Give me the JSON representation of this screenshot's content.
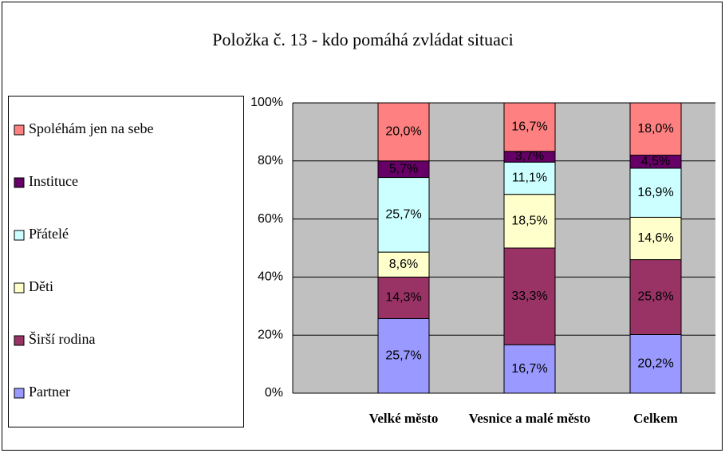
{
  "chart_data": {
    "type": "stacked_bar",
    "title": "Položka č. 13 - kdo pomáhá zvládat situaci",
    "categories": [
      "Velké město",
      "Vesnice a malé město",
      "Celkem"
    ],
    "series": [
      {
        "name": "Partner",
        "color": "#9999ff",
        "values": [
          25.7,
          16.7,
          20.2
        ],
        "value_labels": [
          "25,7%",
          "16,7%",
          "20,2%"
        ]
      },
      {
        "name": "Širší rodina",
        "color": "#993366",
        "values": [
          14.3,
          33.3,
          25.8
        ],
        "value_labels": [
          "14,3%",
          "33,3%",
          "25,8%"
        ]
      },
      {
        "name": "Děti",
        "color": "#ffffcc",
        "values": [
          8.6,
          18.5,
          14.6
        ],
        "value_labels": [
          "8,6%",
          "18,5%",
          "14,6%"
        ]
      },
      {
        "name": "Přátelé",
        "color": "#ccffff",
        "values": [
          25.7,
          11.1,
          16.9
        ],
        "value_labels": [
          "25,7%",
          "11,1%",
          "16,9%"
        ]
      },
      {
        "name": "Instituce",
        "color": "#660066",
        "values": [
          5.7,
          3.7,
          4.5
        ],
        "value_labels": [
          "5,7%",
          "3,7%",
          "4,5%"
        ]
      },
      {
        "name": "Spoléhám jen na sebe",
        "color": "#ff8080",
        "values": [
          20.0,
          16.7,
          18.0
        ],
        "value_labels": [
          "20,0%",
          "16,7%",
          "18,0%"
        ]
      }
    ],
    "ylim": [
      0,
      100
    ],
    "yticks": [
      {
        "value": 0,
        "label": "0%"
      },
      {
        "value": 20,
        "label": "20%"
      },
      {
        "value": 40,
        "label": "40%"
      },
      {
        "value": 60,
        "label": "60%"
      },
      {
        "value": 80,
        "label": "80%"
      },
      {
        "value": 100,
        "label": "100%"
      }
    ],
    "grid": true,
    "legend": "left"
  }
}
